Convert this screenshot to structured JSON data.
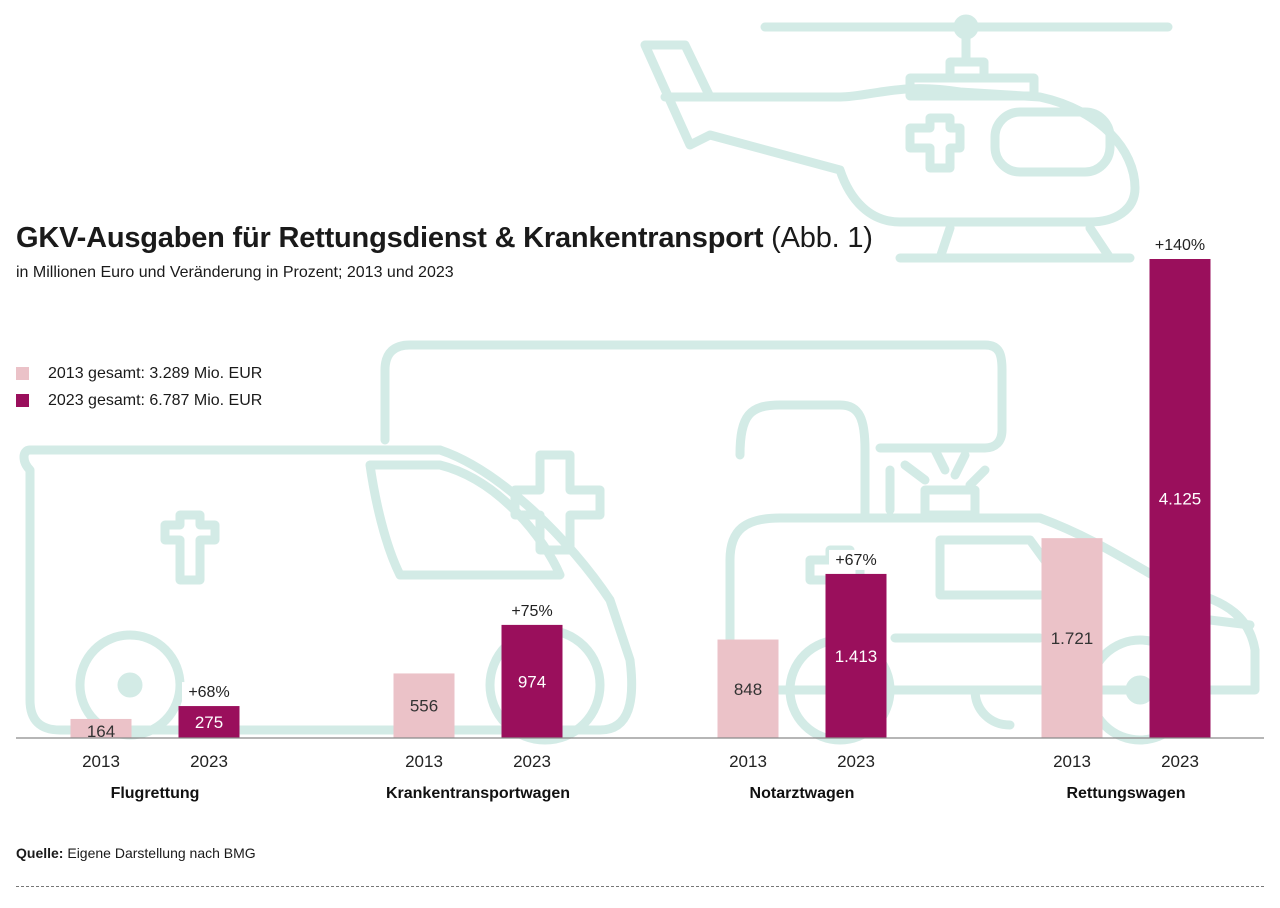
{
  "header": {
    "title": "GKV-Ausgaben für Rettungsdienst & Krankentransport",
    "title_suffix": "(Abb. 1)",
    "subtitle": "in Millionen Euro und Veränderung in Prozent; 2013 und 2023"
  },
  "legend": [
    {
      "label": "2013 gesamt: 3.289 Mio. EUR",
      "color": "#ebc2c8"
    },
    {
      "label": "2023 gesamt: 6.787 Mio. EUR",
      "color": "#9a0f5c"
    }
  ],
  "source": {
    "label": "Quelle:",
    "text": "Eigene Darstellung nach BMG"
  },
  "colors": {
    "light": "#ebc2c8",
    "dark": "#9a0f5c",
    "illustration": "#d3ebe6",
    "axis": "#8a8a8a"
  },
  "chart_data": {
    "type": "bar",
    "title": "GKV-Ausgaben für Rettungsdienst & Krankentransport (Abb. 1)",
    "subtitle": "in Millionen Euro und Veränderung in Prozent; 2013 und 2023",
    "categories": [
      "Flugrettung",
      "Krankentransportwagen",
      "Notarztwagen",
      "Rettungswagen"
    ],
    "years": [
      "2013",
      "2023"
    ],
    "series": [
      {
        "name": "2013",
        "values": [
          164,
          556,
          848,
          1721
        ],
        "labels": [
          "164",
          "556",
          "848",
          "1.721"
        ]
      },
      {
        "name": "2023",
        "values": [
          275,
          974,
          1413,
          4125
        ],
        "labels": [
          "275",
          "974",
          "1.413",
          "4.125"
        ]
      }
    ],
    "changes": [
      "+68%",
      "+75%",
      "+67%",
      "+140%"
    ],
    "ylim": [
      0,
      4125
    ],
    "grid": false,
    "legend_position": "left"
  }
}
